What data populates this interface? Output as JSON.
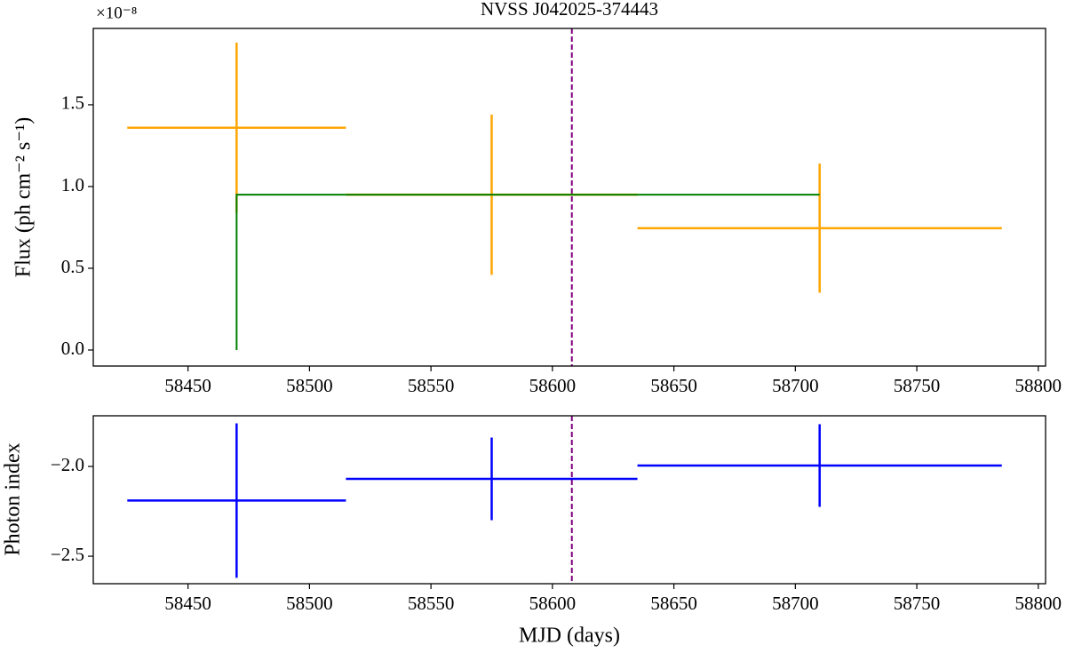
{
  "chart_data": [
    {
      "type": "errorbar",
      "title": "NVSS J042025-374443",
      "ylabel": "Flux (ph cm⁻² s⁻¹)",
      "offset_label": "×10⁻⁸",
      "xlim": [
        58411,
        58803
      ],
      "xticks": [
        58450,
        58500,
        58550,
        58600,
        58650,
        58700,
        58750,
        58800
      ],
      "ylim": [
        -0.098,
        1.967
      ],
      "yticks": [
        {
          "value": 0,
          "label": "0.0"
        },
        {
          "value": 0.5,
          "label": "0.5"
        },
        {
          "value": 1,
          "label": "1.0"
        },
        {
          "value": 1.5,
          "label": "1.5"
        }
      ],
      "vline": {
        "x": 58608,
        "color": "#800080",
        "dashed": true
      },
      "series": [
        {
          "style": "errorbar",
          "color": "#ffa500",
          "x": [
            58470,
            58575,
            58710
          ],
          "xerr": [
            45,
            60,
            75
          ],
          "values": [
            1.36,
            0.95,
            0.745
          ],
          "yerr": [
            0.52,
            0.49,
            0.395
          ]
        },
        {
          "style": "line",
          "color": "#008000",
          "x": [
            58470,
            58470,
            58710
          ],
          "values": [
            0,
            0.95,
            0.95
          ]
        }
      ]
    },
    {
      "type": "errorbar",
      "xlabel": "MJD (days)",
      "ylabel": "Photon index",
      "xlim": [
        58411,
        58803
      ],
      "xticks": [
        58450,
        58500,
        58550,
        58600,
        58650,
        58700,
        58750,
        58800
      ],
      "ylim": [
        -2.653,
        -1.718
      ],
      "yticks": [
        {
          "value": -2.5,
          "label": "−2.5"
        },
        {
          "value": -2,
          "label": "−2.0"
        }
      ],
      "vline": {
        "x": 58608,
        "color": "#800080",
        "dashed": true
      },
      "series": [
        {
          "style": "errorbar",
          "color": "#0000ff",
          "x": [
            58470,
            58575,
            58710
          ],
          "xerr": [
            45,
            60,
            75
          ],
          "values": [
            -2.19,
            -2.069,
            -1.995
          ],
          "yerr": [
            0.43,
            0.23,
            0.23
          ]
        }
      ]
    }
  ]
}
